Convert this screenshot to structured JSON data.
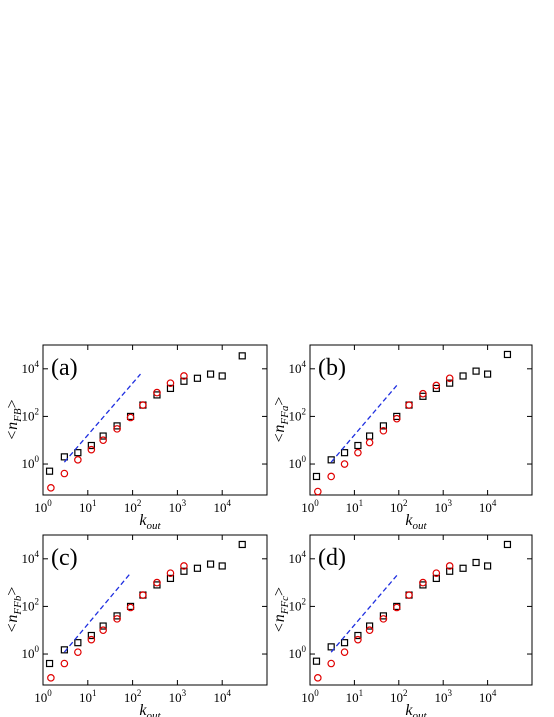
{
  "chart_data": [
    {
      "type": "scatter",
      "panel_label": "(a)",
      "xlabel": {
        "text": "k",
        "subscript": "out"
      },
      "ylabel": {
        "text": "<n",
        "subscript": "FB",
        "suffix": ">"
      },
      "log_x": true,
      "log_y": true,
      "xlim": [
        1,
        100000
      ],
      "ylim": [
        0.05,
        100000
      ],
      "xticks": [
        {
          "value": 1,
          "label": "10^0"
        },
        {
          "value": 10,
          "label": "10^1"
        },
        {
          "value": 100,
          "label": "10^2"
        },
        {
          "value": 1000,
          "label": "10^3"
        },
        {
          "value": 10000,
          "label": "10^4"
        }
      ],
      "yticks": [
        {
          "value": 1,
          "label": "10^0"
        },
        {
          "value": 100,
          "label": "10^2"
        },
        {
          "value": 10000,
          "label": "10^4"
        }
      ],
      "series": [
        {
          "marker": "square",
          "color": "#000000",
          "x": [
            1.4,
            3,
            6,
            12,
            22,
            45,
            90,
            170,
            350,
            700,
            1400,
            2800,
            5500,
            10000,
            28000
          ],
          "values": [
            0.5,
            2,
            3,
            6,
            15,
            40,
            100,
            300,
            800,
            1500,
            3000,
            4000,
            6000,
            5000,
            35000
          ]
        },
        {
          "marker": "circle",
          "color": "#e00000",
          "x": [
            1.5,
            3,
            6,
            12,
            22,
            45,
            90,
            170,
            350,
            700,
            1400
          ],
          "values": [
            0.1,
            0.4,
            1.5,
            4,
            10,
            30,
            90,
            300,
            1000,
            2500,
            5000
          ]
        },
        {
          "marker": "dashed-line",
          "color": "#1f2fe0",
          "x": [
            3,
            150
          ],
          "values": [
            1.2,
            6000
          ]
        }
      ]
    },
    {
      "type": "scatter",
      "panel_label": "(b)",
      "xlabel": {
        "text": "k",
        "subscript": "out"
      },
      "ylabel": {
        "text": "<n",
        "subscript": "FFa",
        "suffix": ">"
      },
      "log_x": true,
      "log_y": true,
      "xlim": [
        1,
        100000
      ],
      "ylim": [
        0.05,
        100000
      ],
      "xticks": [
        {
          "value": 1,
          "label": "10^0"
        },
        {
          "value": 10,
          "label": "10^1"
        },
        {
          "value": 100,
          "label": "10^2"
        },
        {
          "value": 1000,
          "label": "10^3"
        },
        {
          "value": 10000,
          "label": "10^4"
        }
      ],
      "yticks": [
        {
          "value": 1,
          "label": "10^0"
        },
        {
          "value": 100,
          "label": "10^2"
        },
        {
          "value": 10000,
          "label": "10^4"
        }
      ],
      "series": [
        {
          "marker": "square",
          "color": "#000000",
          "x": [
            1.4,
            3,
            6,
            12,
            22,
            45,
            90,
            170,
            350,
            700,
            1400,
            2800,
            5500,
            10000,
            28000
          ],
          "values": [
            0.3,
            1.5,
            3,
            6,
            15,
            40,
            100,
            300,
            700,
            1500,
            2500,
            5000,
            8000,
            6000,
            40000
          ]
        },
        {
          "marker": "circle",
          "color": "#e00000",
          "x": [
            1.5,
            3,
            6,
            12,
            22,
            45,
            90,
            170,
            350,
            700,
            1400
          ],
          "values": [
            0.07,
            0.3,
            1,
            3,
            8,
            25,
            80,
            300,
            900,
            2000,
            4000
          ]
        },
        {
          "marker": "dashed-line",
          "color": "#1f2fe0",
          "x": [
            3,
            90
          ],
          "values": [
            1.2,
            2000
          ]
        }
      ]
    },
    {
      "type": "scatter",
      "panel_label": "(c)",
      "xlabel": {
        "text": "k",
        "subscript": "out"
      },
      "ylabel": {
        "text": "<n",
        "subscript": "FFb",
        "suffix": ">"
      },
      "log_x": true,
      "log_y": true,
      "xlim": [
        1,
        100000
      ],
      "ylim": [
        0.05,
        100000
      ],
      "xticks": [
        {
          "value": 1,
          "label": "10^0"
        },
        {
          "value": 10,
          "label": "10^1"
        },
        {
          "value": 100,
          "label": "10^2"
        },
        {
          "value": 1000,
          "label": "10^3"
        },
        {
          "value": 10000,
          "label": "10^4"
        }
      ],
      "yticks": [
        {
          "value": 1,
          "label": "10^0"
        },
        {
          "value": 100,
          "label": "10^2"
        },
        {
          "value": 10000,
          "label": "10^4"
        }
      ],
      "series": [
        {
          "marker": "square",
          "color": "#000000",
          "x": [
            1.4,
            3,
            6,
            12,
            22,
            45,
            90,
            170,
            350,
            700,
            1400,
            2800,
            5500,
            10000,
            28000
          ],
          "values": [
            0.4,
            1.5,
            3,
            6,
            15,
            40,
            100,
            300,
            800,
            1500,
            3000,
            4000,
            6000,
            5000,
            40000
          ]
        },
        {
          "marker": "circle",
          "color": "#e00000",
          "x": [
            1.5,
            3,
            6,
            12,
            22,
            45,
            90,
            170,
            350,
            700,
            1400
          ],
          "values": [
            0.1,
            0.4,
            1.2,
            4,
            10,
            30,
            90,
            300,
            1000,
            2500,
            5000
          ]
        },
        {
          "marker": "dashed-line",
          "color": "#1f2fe0",
          "x": [
            3,
            90
          ],
          "values": [
            1.2,
            2500
          ]
        }
      ]
    },
    {
      "type": "scatter",
      "panel_label": "(d)",
      "xlabel": {
        "text": "k",
        "subscript": "out"
      },
      "ylabel": {
        "text": "<n",
        "subscript": "FFc",
        "suffix": ">"
      },
      "log_x": true,
      "log_y": true,
      "xlim": [
        1,
        100000
      ],
      "ylim": [
        0.05,
        100000
      ],
      "xticks": [
        {
          "value": 1,
          "label": "10^0"
        },
        {
          "value": 10,
          "label": "10^1"
        },
        {
          "value": 100,
          "label": "10^2"
        },
        {
          "value": 1000,
          "label": "10^3"
        },
        {
          "value": 10000,
          "label": "10^4"
        }
      ],
      "yticks": [
        {
          "value": 1,
          "label": "10^0"
        },
        {
          "value": 100,
          "label": "10^2"
        },
        {
          "value": 10000,
          "label": "10^4"
        }
      ],
      "series": [
        {
          "marker": "square",
          "color": "#000000",
          "x": [
            1.4,
            3,
            6,
            12,
            22,
            45,
            90,
            170,
            350,
            700,
            1400,
            2800,
            5500,
            10000,
            28000
          ],
          "values": [
            0.5,
            2,
            3,
            6,
            15,
            40,
            100,
            300,
            800,
            1500,
            3000,
            4000,
            7000,
            5000,
            40000
          ]
        },
        {
          "marker": "circle",
          "color": "#e00000",
          "x": [
            1.5,
            3,
            6,
            12,
            22,
            45,
            90,
            170,
            350,
            700,
            1400
          ],
          "values": [
            0.1,
            0.4,
            1.2,
            4,
            10,
            30,
            90,
            300,
            1000,
            2500,
            5000
          ]
        },
        {
          "marker": "dashed-line",
          "color": "#1f2fe0",
          "x": [
            3,
            100
          ],
          "values": [
            1.2,
            2500
          ]
        }
      ]
    }
  ]
}
